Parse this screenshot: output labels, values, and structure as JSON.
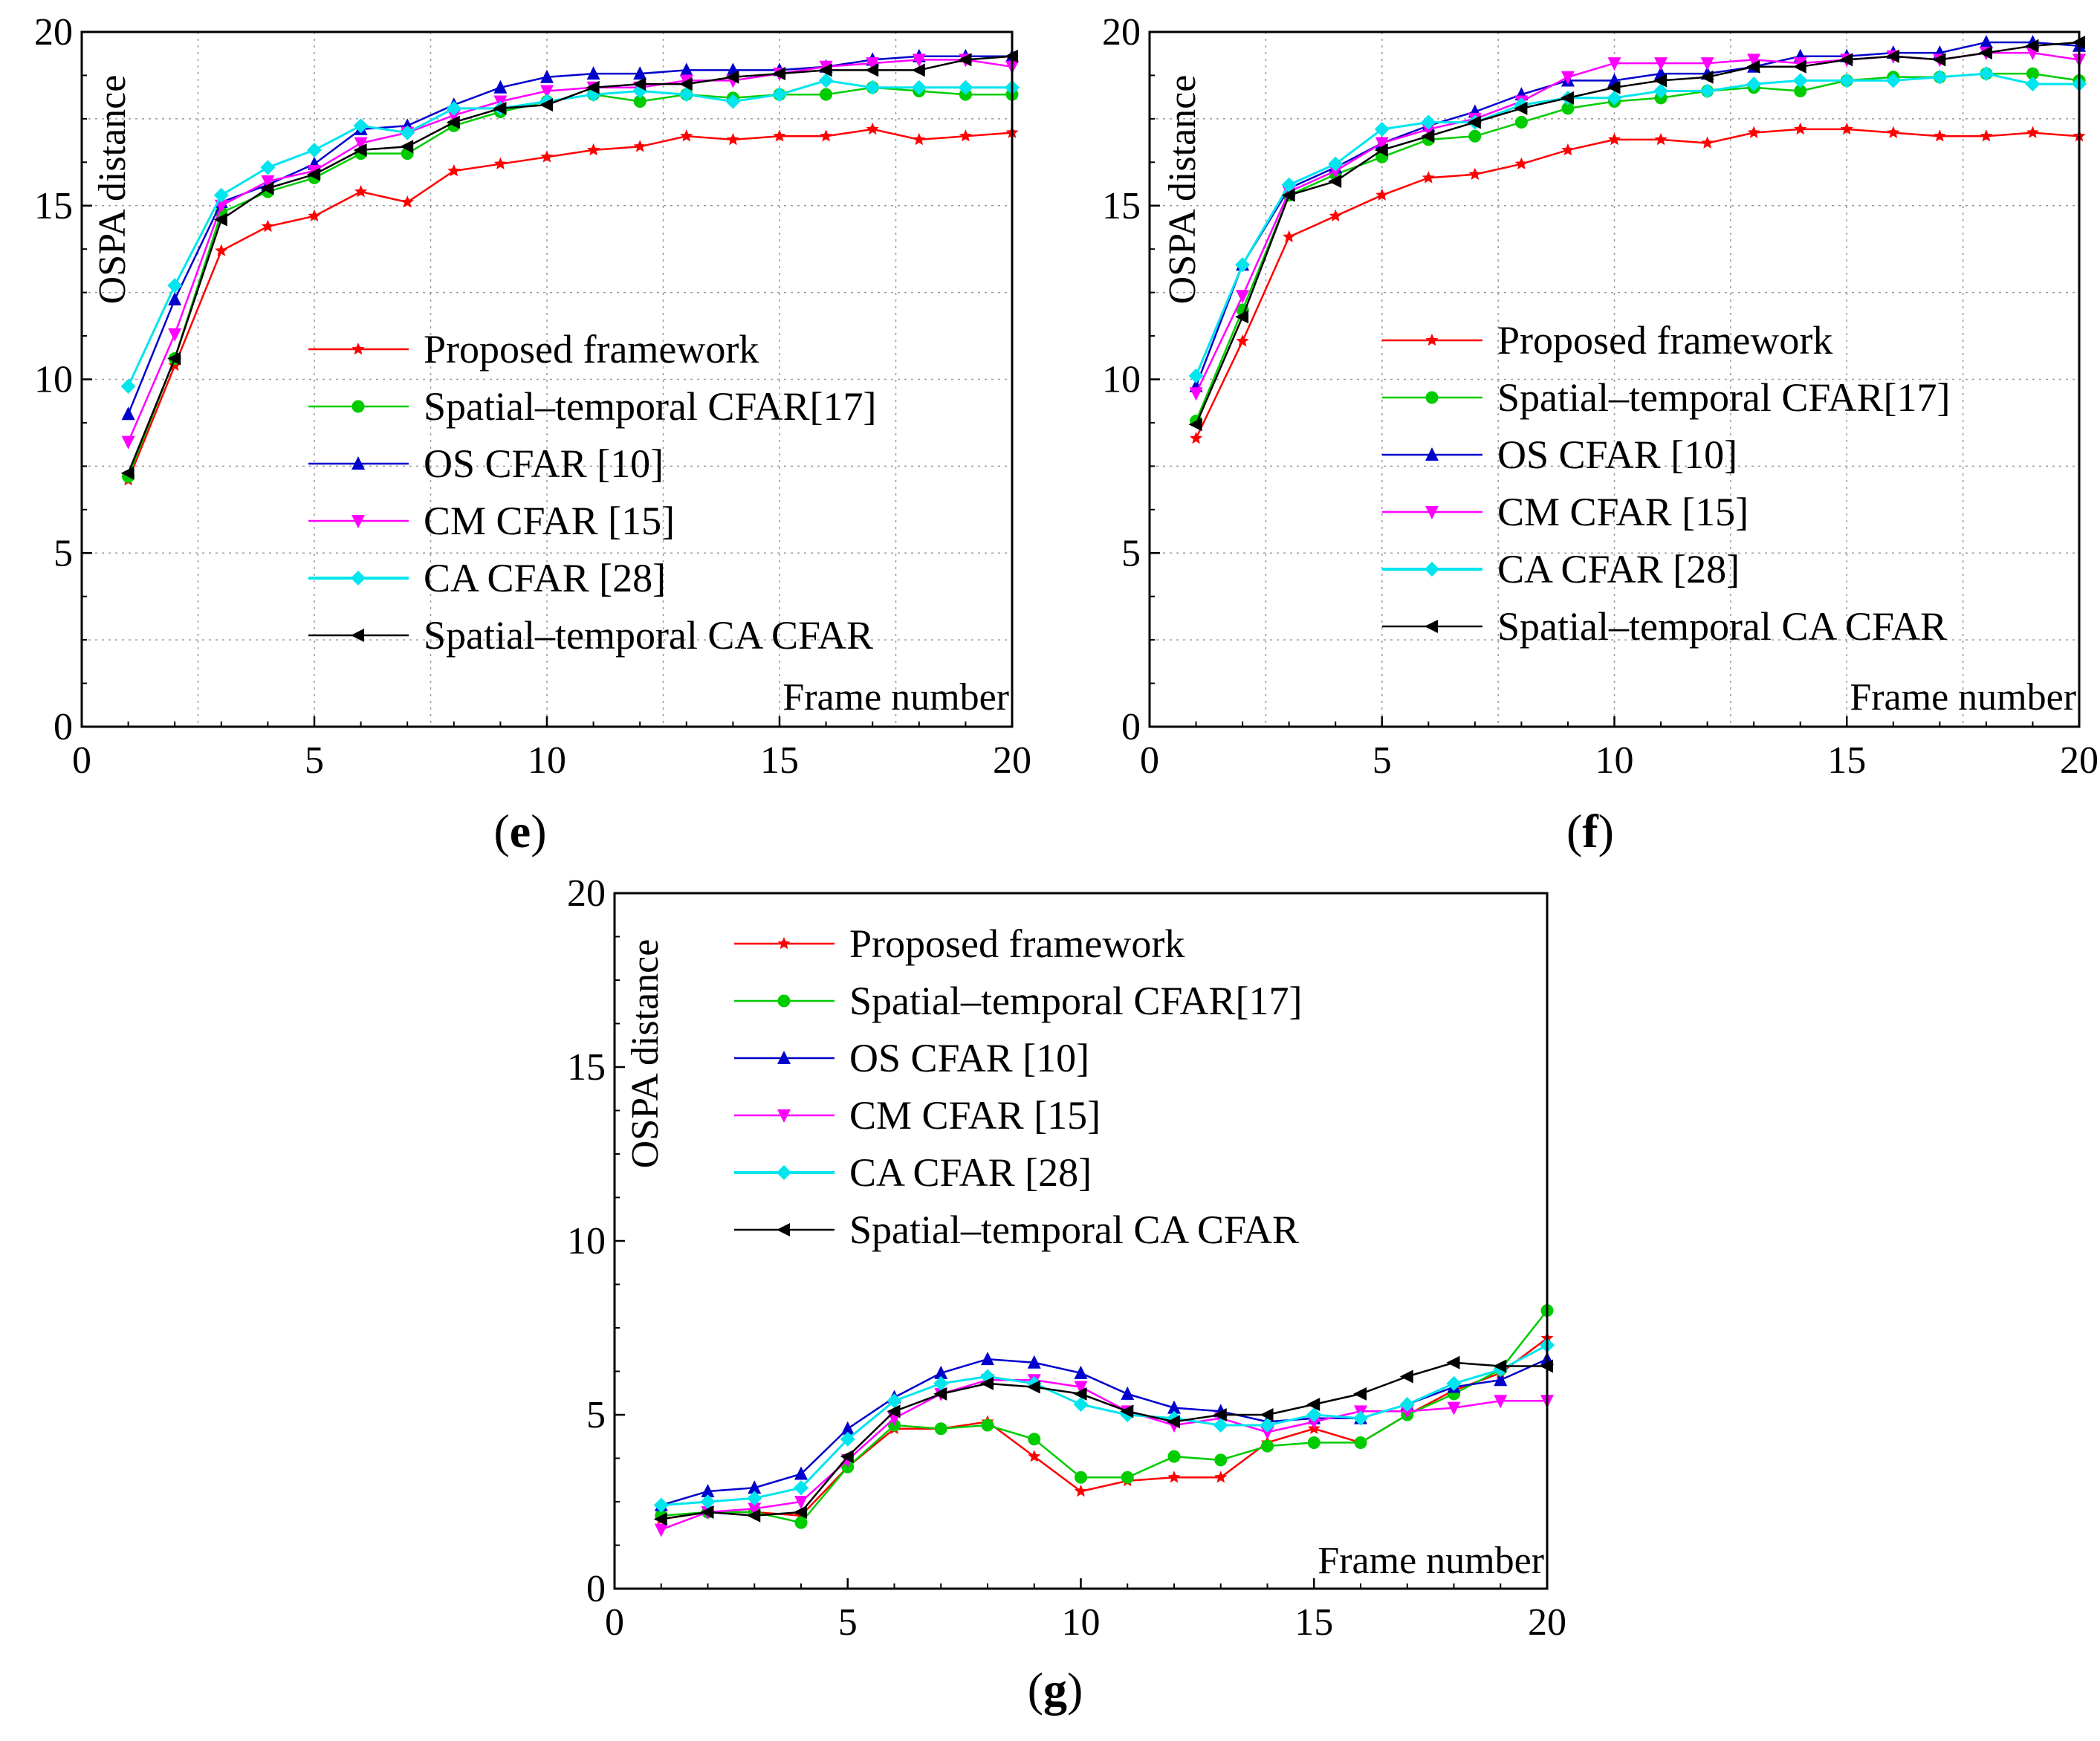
{
  "chart_data": [
    {
      "panel": "(e)",
      "caption_letter": "e",
      "type": "line",
      "title": "",
      "xlabel": "Frame number",
      "ylabel": "OSPA distance",
      "xlim": [
        0,
        20
      ],
      "ylim": [
        0,
        20
      ],
      "xticks": [
        "0",
        "5",
        "10",
        "15",
        "20"
      ],
      "yticks": [
        "0",
        "5",
        "10",
        "15",
        "20"
      ],
      "grid": true,
      "legend_position": "center",
      "x": [
        1,
        2,
        3,
        4,
        5,
        6,
        7,
        8,
        9,
        10,
        11,
        12,
        13,
        14,
        15,
        16,
        17,
        18,
        19,
        20
      ],
      "series": [
        {
          "name": "Proposed framework",
          "color": "#ff0000",
          "marker": "star",
          "values": [
            7.1,
            10.4,
            13.7,
            14.4,
            14.7,
            15.4,
            15.1,
            16.0,
            16.2,
            16.4,
            16.6,
            16.7,
            17.0,
            16.9,
            17.0,
            17.0,
            17.2,
            16.9,
            17.0,
            17.1
          ]
        },
        {
          "name": "Spatial–temporal CFAR[17]",
          "color": "#00cc00",
          "marker": "circle",
          "values": [
            7.2,
            10.6,
            14.8,
            15.4,
            15.8,
            16.5,
            16.5,
            17.3,
            17.7,
            18.0,
            18.2,
            18.0,
            18.2,
            18.1,
            18.2,
            18.2,
            18.4,
            18.3,
            18.2,
            18.2
          ]
        },
        {
          "name": "OS CFAR [10]",
          "color": "#0000cc",
          "marker": "triangle-up",
          "values": [
            9.0,
            12.3,
            15.1,
            15.6,
            16.2,
            17.2,
            17.3,
            17.9,
            18.4,
            18.7,
            18.8,
            18.8,
            18.9,
            18.9,
            18.9,
            19.0,
            19.2,
            19.3,
            19.3,
            19.3
          ]
        },
        {
          "name": "CM CFAR [15]",
          "color": "#ff00ff",
          "marker": "triangle-down",
          "values": [
            8.2,
            11.3,
            15.0,
            15.7,
            16.0,
            16.8,
            17.1,
            17.6,
            18.0,
            18.3,
            18.4,
            18.4,
            18.6,
            18.6,
            18.8,
            19.0,
            19.1,
            19.2,
            19.2,
            19.0
          ]
        },
        {
          "name": "CA CFAR [28]",
          "color": "#00e5ee",
          "marker": "diamond",
          "values": [
            9.8,
            12.7,
            15.3,
            16.1,
            16.6,
            17.3,
            17.1,
            17.8,
            17.8,
            18.0,
            18.2,
            18.3,
            18.2,
            18.0,
            18.2,
            18.6,
            18.4,
            18.4,
            18.4,
            18.4
          ]
        },
        {
          "name": "Spatial–temporal CA CFAR",
          "color": "#000000",
          "marker": "triangle-left",
          "values": [
            7.3,
            10.6,
            14.6,
            15.5,
            15.9,
            16.6,
            16.7,
            17.4,
            17.8,
            17.9,
            18.4,
            18.5,
            18.5,
            18.7,
            18.8,
            18.9,
            18.9,
            18.9,
            19.2,
            19.3
          ]
        }
      ]
    },
    {
      "panel": "(f)",
      "caption_letter": "f",
      "type": "line",
      "title": "",
      "xlabel": "Frame number",
      "ylabel": "OSPA distance",
      "xlim": [
        0,
        20
      ],
      "ylim": [
        0,
        20
      ],
      "xticks": [
        "0",
        "5",
        "10",
        "15",
        "20"
      ],
      "yticks": [
        "0",
        "5",
        "10",
        "15",
        "20"
      ],
      "grid": true,
      "legend_position": "center-right",
      "x": [
        1,
        2,
        3,
        4,
        5,
        6,
        7,
        8,
        9,
        10,
        11,
        12,
        13,
        14,
        15,
        16,
        17,
        18,
        19,
        20
      ],
      "series": [
        {
          "name": "Proposed framework",
          "color": "#ff0000",
          "marker": "star",
          "values": [
            8.3,
            11.1,
            14.1,
            14.7,
            15.3,
            15.8,
            15.9,
            16.2,
            16.6,
            16.9,
            16.9,
            16.8,
            17.1,
            17.2,
            17.2,
            17.1,
            17.0,
            17.0,
            17.1,
            17.0
          ]
        },
        {
          "name": "Spatial–temporal CFAR[17]",
          "color": "#00cc00",
          "marker": "circle",
          "values": [
            8.8,
            12.0,
            15.3,
            15.9,
            16.4,
            16.9,
            17.0,
            17.4,
            17.8,
            18.0,
            18.1,
            18.3,
            18.4,
            18.3,
            18.6,
            18.7,
            18.7,
            18.8,
            18.8,
            18.6
          ]
        },
        {
          "name": "OS CFAR [10]",
          "color": "#0000cc",
          "marker": "triangle-up",
          "values": [
            9.8,
            13.3,
            15.5,
            16.1,
            16.8,
            17.3,
            17.7,
            18.2,
            18.6,
            18.6,
            18.8,
            18.8,
            19.0,
            19.3,
            19.3,
            19.4,
            19.4,
            19.7,
            19.7,
            19.6
          ]
        },
        {
          "name": "CM CFAR [15]",
          "color": "#ff00ff",
          "marker": "triangle-down",
          "values": [
            9.6,
            12.4,
            15.4,
            16.0,
            16.8,
            17.2,
            17.5,
            18.0,
            18.7,
            19.1,
            19.1,
            19.1,
            19.2,
            19.1,
            19.2,
            19.3,
            19.2,
            19.4,
            19.4,
            19.2
          ]
        },
        {
          "name": "CA CFAR [28]",
          "color": "#00e5ee",
          "marker": "diamond",
          "values": [
            10.1,
            13.3,
            15.6,
            16.2,
            17.2,
            17.4,
            17.4,
            17.9,
            18.1,
            18.1,
            18.3,
            18.3,
            18.5,
            18.6,
            18.6,
            18.6,
            18.7,
            18.8,
            18.5,
            18.5
          ]
        },
        {
          "name": "Spatial–temporal CA CFAR",
          "color": "#000000",
          "marker": "triangle-left",
          "values": [
            8.7,
            11.8,
            15.3,
            15.7,
            16.6,
            17.0,
            17.4,
            17.8,
            18.1,
            18.4,
            18.6,
            18.7,
            19.0,
            19.0,
            19.2,
            19.3,
            19.2,
            19.4,
            19.6,
            19.7
          ]
        }
      ]
    },
    {
      "panel": "(g)",
      "caption_letter": "g",
      "type": "line",
      "title": "",
      "xlabel": "Frame number",
      "ylabel": "OSPA distance",
      "xlim": [
        0,
        20
      ],
      "ylim": [
        0,
        20
      ],
      "xticks": [
        "0",
        "5",
        "10",
        "15",
        "20"
      ],
      "yticks": [
        "0",
        "5",
        "10",
        "15",
        "20"
      ],
      "grid": false,
      "legend_position": "top",
      "x": [
        1,
        2,
        3,
        4,
        5,
        6,
        7,
        8,
        9,
        10,
        11,
        12,
        13,
        14,
        15,
        16,
        17,
        18,
        19,
        20
      ],
      "series": [
        {
          "name": "Proposed framework",
          "color": "#ff0000",
          "marker": "star",
          "values": [
            2.0,
            2.2,
            2.2,
            2.1,
            3.5,
            4.6,
            4.6,
            4.8,
            3.8,
            2.8,
            3.1,
            3.2,
            3.2,
            4.2,
            4.6,
            4.2,
            5.0,
            5.7,
            6.2,
            7.2
          ]
        },
        {
          "name": "Spatial–temporal CFAR[17]",
          "color": "#00cc00",
          "marker": "circle",
          "values": [
            2.1,
            2.2,
            2.2,
            1.9,
            3.5,
            4.7,
            4.6,
            4.7,
            4.3,
            3.2,
            3.2,
            3.8,
            3.7,
            4.1,
            4.2,
            4.2,
            5.0,
            5.6,
            6.3,
            8.0
          ]
        },
        {
          "name": "OS CFAR [10]",
          "color": "#0000cc",
          "marker": "triangle-up",
          "values": [
            2.4,
            2.8,
            2.9,
            3.3,
            4.6,
            5.5,
            6.2,
            6.6,
            6.5,
            6.2,
            5.6,
            5.2,
            5.1,
            4.8,
            4.9,
            4.9,
            5.3,
            5.8,
            6.0,
            6.6
          ]
        },
        {
          "name": "CM CFAR [15]",
          "color": "#ff00ff",
          "marker": "triangle-down",
          "values": [
            1.7,
            2.2,
            2.3,
            2.5,
            3.7,
            4.9,
            5.6,
            6.0,
            6.0,
            5.8,
            5.1,
            4.7,
            4.9,
            4.5,
            4.8,
            5.1,
            5.1,
            5.2,
            5.4,
            5.4
          ]
        },
        {
          "name": "CA CFAR [28]",
          "color": "#00e5ee",
          "marker": "diamond",
          "values": [
            2.4,
            2.5,
            2.6,
            2.9,
            4.3,
            5.4,
            5.9,
            6.1,
            5.9,
            5.3,
            5.0,
            4.9,
            4.7,
            4.7,
            5.0,
            4.9,
            5.3,
            5.9,
            6.3,
            7.0
          ]
        },
        {
          "name": "Spatial–temporal CA CFAR",
          "color": "#000000",
          "marker": "triangle-left",
          "values": [
            2.0,
            2.2,
            2.1,
            2.2,
            3.8,
            5.1,
            5.6,
            5.9,
            5.8,
            5.6,
            5.1,
            4.8,
            5.0,
            5.0,
            5.3,
            5.6,
            6.1,
            6.5,
            6.4,
            6.4
          ]
        }
      ]
    }
  ]
}
